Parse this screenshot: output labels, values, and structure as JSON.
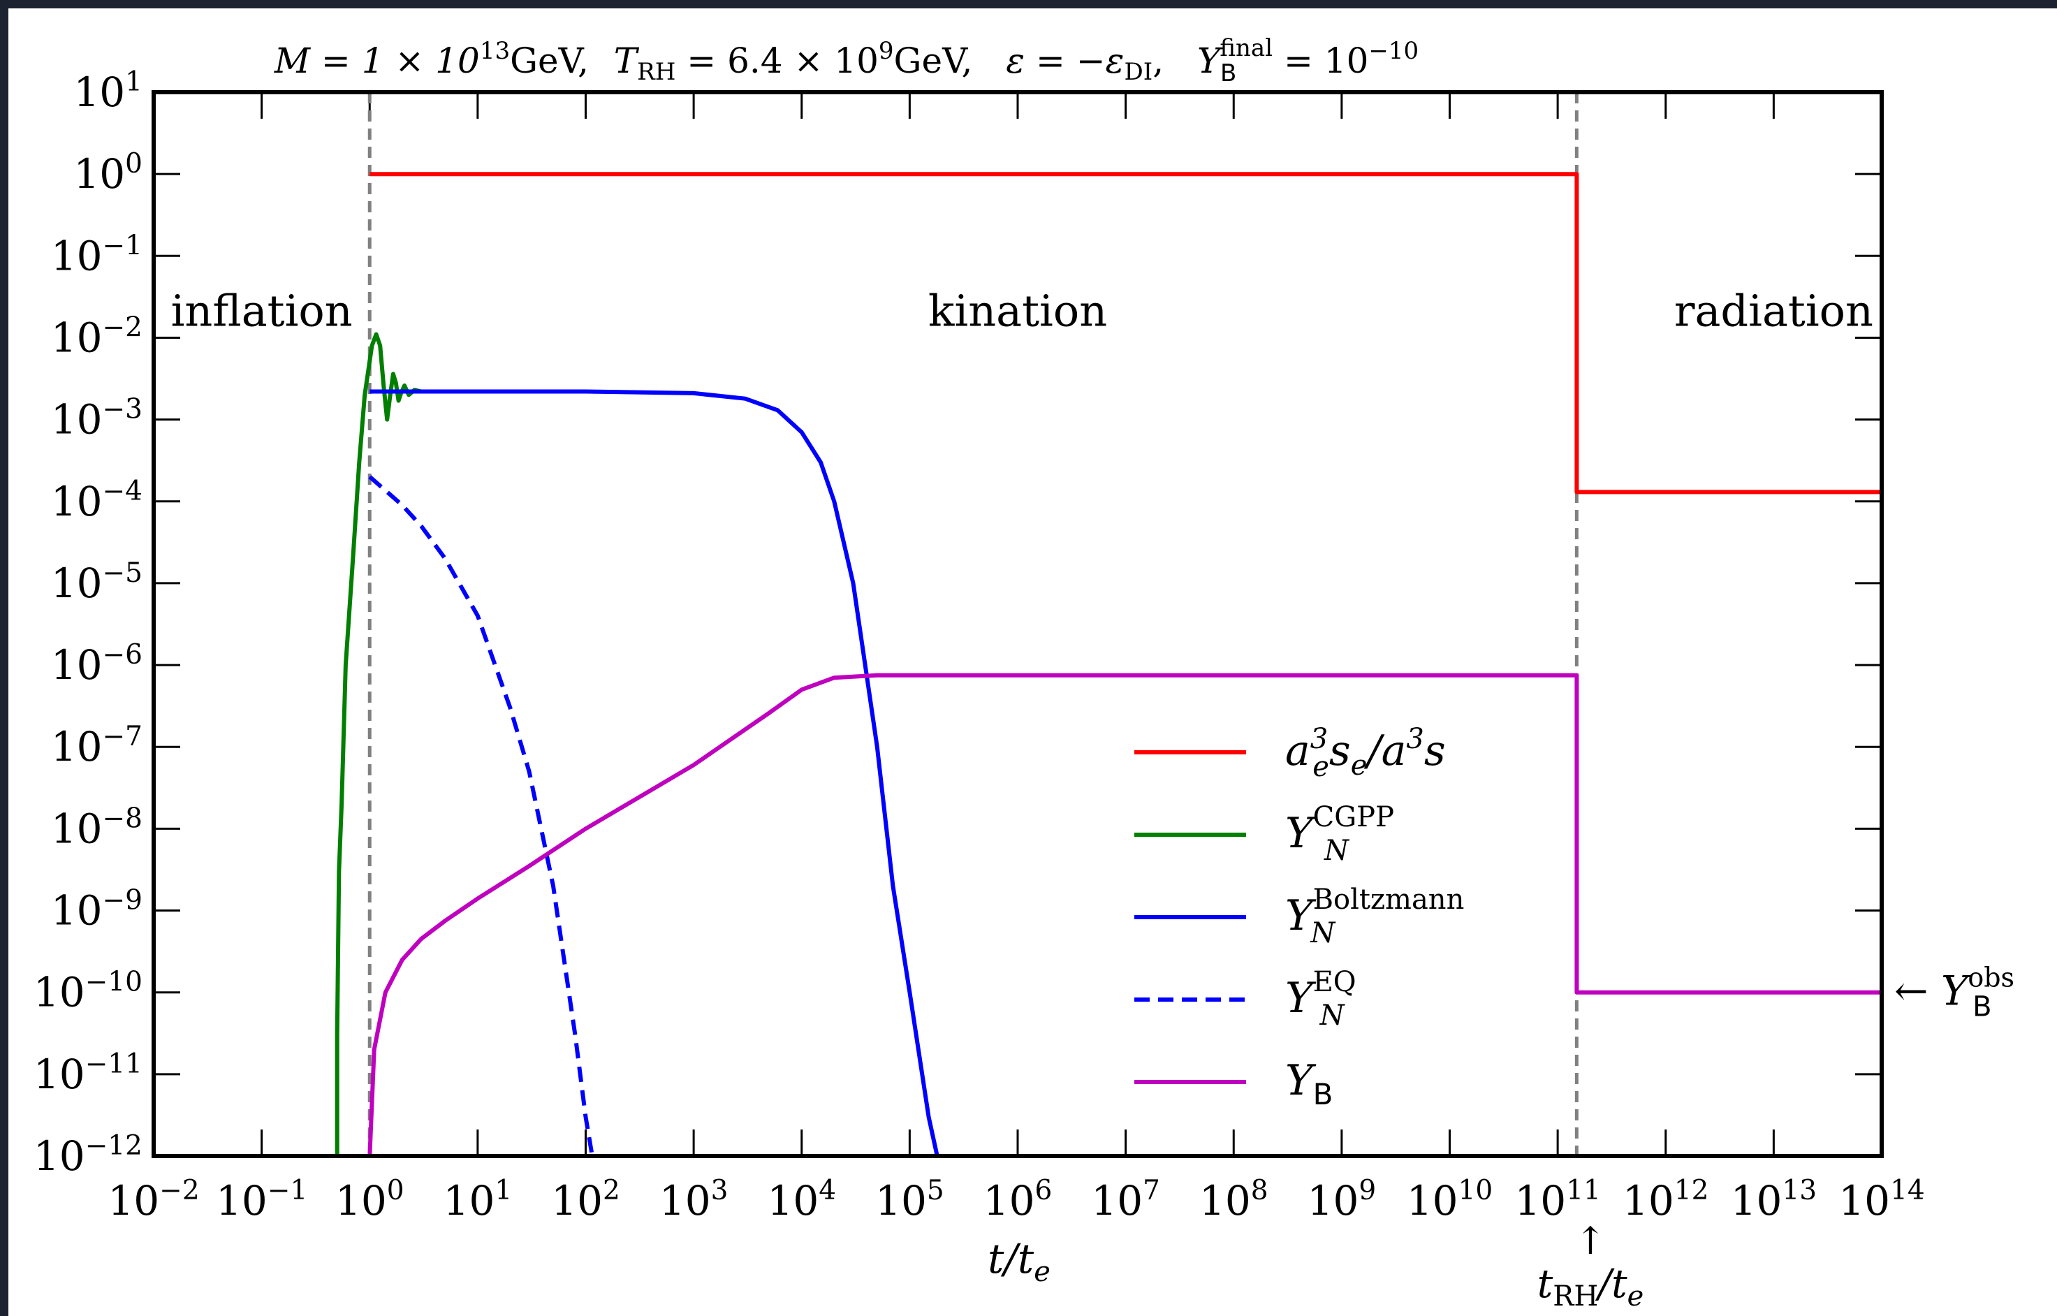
{
  "chart_data": {
    "type": "line",
    "title": "M = 1 × 10^13 GeV,  T_RH = 6.4 × 10^9 GeV,   ε = −ε_DI,   Y_B^final = 10^−10",
    "title_parts": {
      "mass": "M = 1 × 10",
      "mass_exp": "13",
      "mass_unit": "GeV,",
      "trh_sym": "T",
      "trh_sub": "RH",
      "trh_val": " = 6.4 × 10",
      "trh_exp": "9",
      "trh_unit": "GeV,",
      "eps": "ε = −ε",
      "eps_sub": "DI",
      "eps_end": ",",
      "yb": "Y",
      "yb_sub": "B",
      "yb_sup": "final",
      "yb_val": " = 10",
      "yb_exp": "−10"
    },
    "xlabel": {
      "base": "t/t",
      "sub": "e"
    },
    "ylabel": "",
    "xscale": "log",
    "yscale": "log",
    "xlim": [
      -2,
      14
    ],
    "ylim": [
      -12,
      1
    ],
    "x_ticks": [
      {
        "exp": -2,
        "label": "−2"
      },
      {
        "exp": -1,
        "label": "−1"
      },
      {
        "exp": 0,
        "label": "0"
      },
      {
        "exp": 1,
        "label": "1"
      },
      {
        "exp": 2,
        "label": "2"
      },
      {
        "exp": 3,
        "label": "3"
      },
      {
        "exp": 4,
        "label": "4"
      },
      {
        "exp": 5,
        "label": "5"
      },
      {
        "exp": 6,
        "label": "6"
      },
      {
        "exp": 7,
        "label": "7"
      },
      {
        "exp": 8,
        "label": "8"
      },
      {
        "exp": 9,
        "label": "9"
      },
      {
        "exp": 10,
        "label": "10"
      },
      {
        "exp": 11,
        "label": "11"
      },
      {
        "exp": 12,
        "label": "12"
      },
      {
        "exp": 13,
        "label": "13"
      },
      {
        "exp": 14,
        "label": "14"
      }
    ],
    "y_ticks": [
      {
        "exp": 1,
        "label": "1"
      },
      {
        "exp": 0,
        "label": "0"
      },
      {
        "exp": -1,
        "label": "−1"
      },
      {
        "exp": -2,
        "label": "−2"
      },
      {
        "exp": -3,
        "label": "−3"
      },
      {
        "exp": -4,
        "label": "−4"
      },
      {
        "exp": -5,
        "label": "−5"
      },
      {
        "exp": -6,
        "label": "−6"
      },
      {
        "exp": -7,
        "label": "−7"
      },
      {
        "exp": -8,
        "label": "−8"
      },
      {
        "exp": -9,
        "label": "−9"
      },
      {
        "exp": -10,
        "label": "−10"
      },
      {
        "exp": -11,
        "label": "−11"
      },
      {
        "exp": -12,
        "label": "−12"
      }
    ],
    "tick_base": "10",
    "grid": false,
    "legend_position": "lower-right",
    "vlines": [
      {
        "x": 1,
        "color": "#808080",
        "style": "dashed"
      },
      {
        "x": 150000000000.0,
        "color": "#808080",
        "style": "dashed"
      }
    ],
    "region_labels": [
      {
        "text": "inflation",
        "x": 0.1,
        "y": 0.014
      },
      {
        "text": "kination",
        "x": 1000000.0,
        "y": 0.014
      },
      {
        "text": "radiation",
        "x": 10000000000000.0,
        "y": 0.014
      }
    ],
    "annotations": {
      "trh_arrow": "↑",
      "trh_label_base": "t",
      "trh_label_sub": "RH",
      "trh_label_end": "/t",
      "trh_label_end_sub": "e",
      "yobs_arrow": "←",
      "yobs_base": "Y",
      "yobs_sub": "B",
      "yobs_sup": "obs",
      "yobs_y": 1e-10
    },
    "series": [
      {
        "name": "a_e^3 s_e / a^3 s",
        "legend": {
          "base": "a",
          "sub": "e",
          "sup": "3",
          "rest": "s",
          "rest_sub": "e",
          "tail": "/a",
          "tail_sup": "3",
          "end": "s"
        },
        "color": "#ff0000",
        "style": "solid",
        "points": [
          [
            1,
            1
          ],
          [
            150000000000.0,
            1
          ],
          [
            150000000000.0,
            0.00013
          ],
          [
            100000000000000.0,
            0.00013
          ]
        ]
      },
      {
        "name": "Y_N^CGPP",
        "legend": {
          "base": "Y",
          "sub": "N",
          "sup": "CGPP"
        },
        "color": "#007f00",
        "style": "solid",
        "points": [
          [
            0.5,
            1e-12
          ],
          [
            0.5,
            3e-11
          ],
          [
            0.52,
            3e-09
          ],
          [
            0.55,
            2e-08
          ],
          [
            0.6,
            1e-06
          ],
          [
            0.7,
            2e-05
          ],
          [
            0.8,
            0.0003
          ],
          [
            0.9,
            0.002
          ],
          [
            1.05,
            0.008
          ],
          [
            1.15,
            0.011
          ],
          [
            1.25,
            0.008
          ],
          [
            1.35,
            0.0025
          ],
          [
            1.45,
            0.001
          ],
          [
            1.55,
            0.002
          ],
          [
            1.65,
            0.0036
          ],
          [
            1.75,
            0.0028
          ],
          [
            1.85,
            0.0017
          ],
          [
            1.95,
            0.0021
          ],
          [
            2.1,
            0.0026
          ],
          [
            2.3,
            0.002
          ],
          [
            2.6,
            0.0023
          ],
          [
            3.0,
            0.0022
          ],
          [
            3.5,
            0.0022
          ]
        ]
      },
      {
        "name": "Y_N^Boltzmann",
        "legend": {
          "base": "Y",
          "sub": "N",
          "sup": "Boltzmann"
        },
        "color": "#0000ff",
        "style": "solid",
        "points": [
          [
            1,
            0.0022
          ],
          [
            10,
            0.0022
          ],
          [
            100,
            0.0022
          ],
          [
            1000,
            0.0021
          ],
          [
            3000,
            0.0018
          ],
          [
            6000,
            0.0013
          ],
          [
            10000,
            0.0007
          ],
          [
            15000,
            0.0003
          ],
          [
            20000,
            0.0001
          ],
          [
            30000,
            1e-05
          ],
          [
            50000,
            1e-07
          ],
          [
            70000,
            2e-09
          ],
          [
            100000,
            1e-10
          ],
          [
            150000,
            3e-12
          ],
          [
            180000,
            1e-12
          ]
        ]
      },
      {
        "name": "Y_N^EQ",
        "legend": {
          "base": "Y",
          "sub": "N",
          "sup": "EQ"
        },
        "color": "#0000ff",
        "style": "dashed",
        "points": [
          [
            1,
            0.0002
          ],
          [
            2,
            9e-05
          ],
          [
            3,
            5e-05
          ],
          [
            5,
            2e-05
          ],
          [
            10,
            4e-06
          ],
          [
            20,
            3e-07
          ],
          [
            30,
            5e-08
          ],
          [
            50,
            2e-09
          ],
          [
            80,
            3e-11
          ],
          [
            100,
            3e-12
          ],
          [
            115,
            1e-12
          ]
        ]
      },
      {
        "name": "Y_B",
        "legend": {
          "base": "Y",
          "sub": "B"
        },
        "color": "#bf00bf",
        "style": "solid",
        "points": [
          [
            1,
            1e-12
          ],
          [
            1.1,
            2e-11
          ],
          [
            1.4,
            1e-10
          ],
          [
            2,
            2.5e-10
          ],
          [
            3,
            4.5e-10
          ],
          [
            5,
            7.5e-10
          ],
          [
            10,
            1.4e-09
          ],
          [
            30,
            3.5e-09
          ],
          [
            100,
            1e-08
          ],
          [
            1000,
            6e-08
          ],
          [
            5000,
            2.6e-07
          ],
          [
            10000,
            5e-07
          ],
          [
            20000,
            7e-07
          ],
          [
            50000,
            7.5e-07
          ],
          [
            100000.0,
            7.5e-07
          ],
          [
            100000000.0,
            7.5e-07
          ],
          [
            150000000000.0,
            7.5e-07
          ],
          [
            150000000000.0,
            1e-10
          ],
          [
            100000000000000.0,
            1e-10
          ]
        ]
      }
    ]
  }
}
